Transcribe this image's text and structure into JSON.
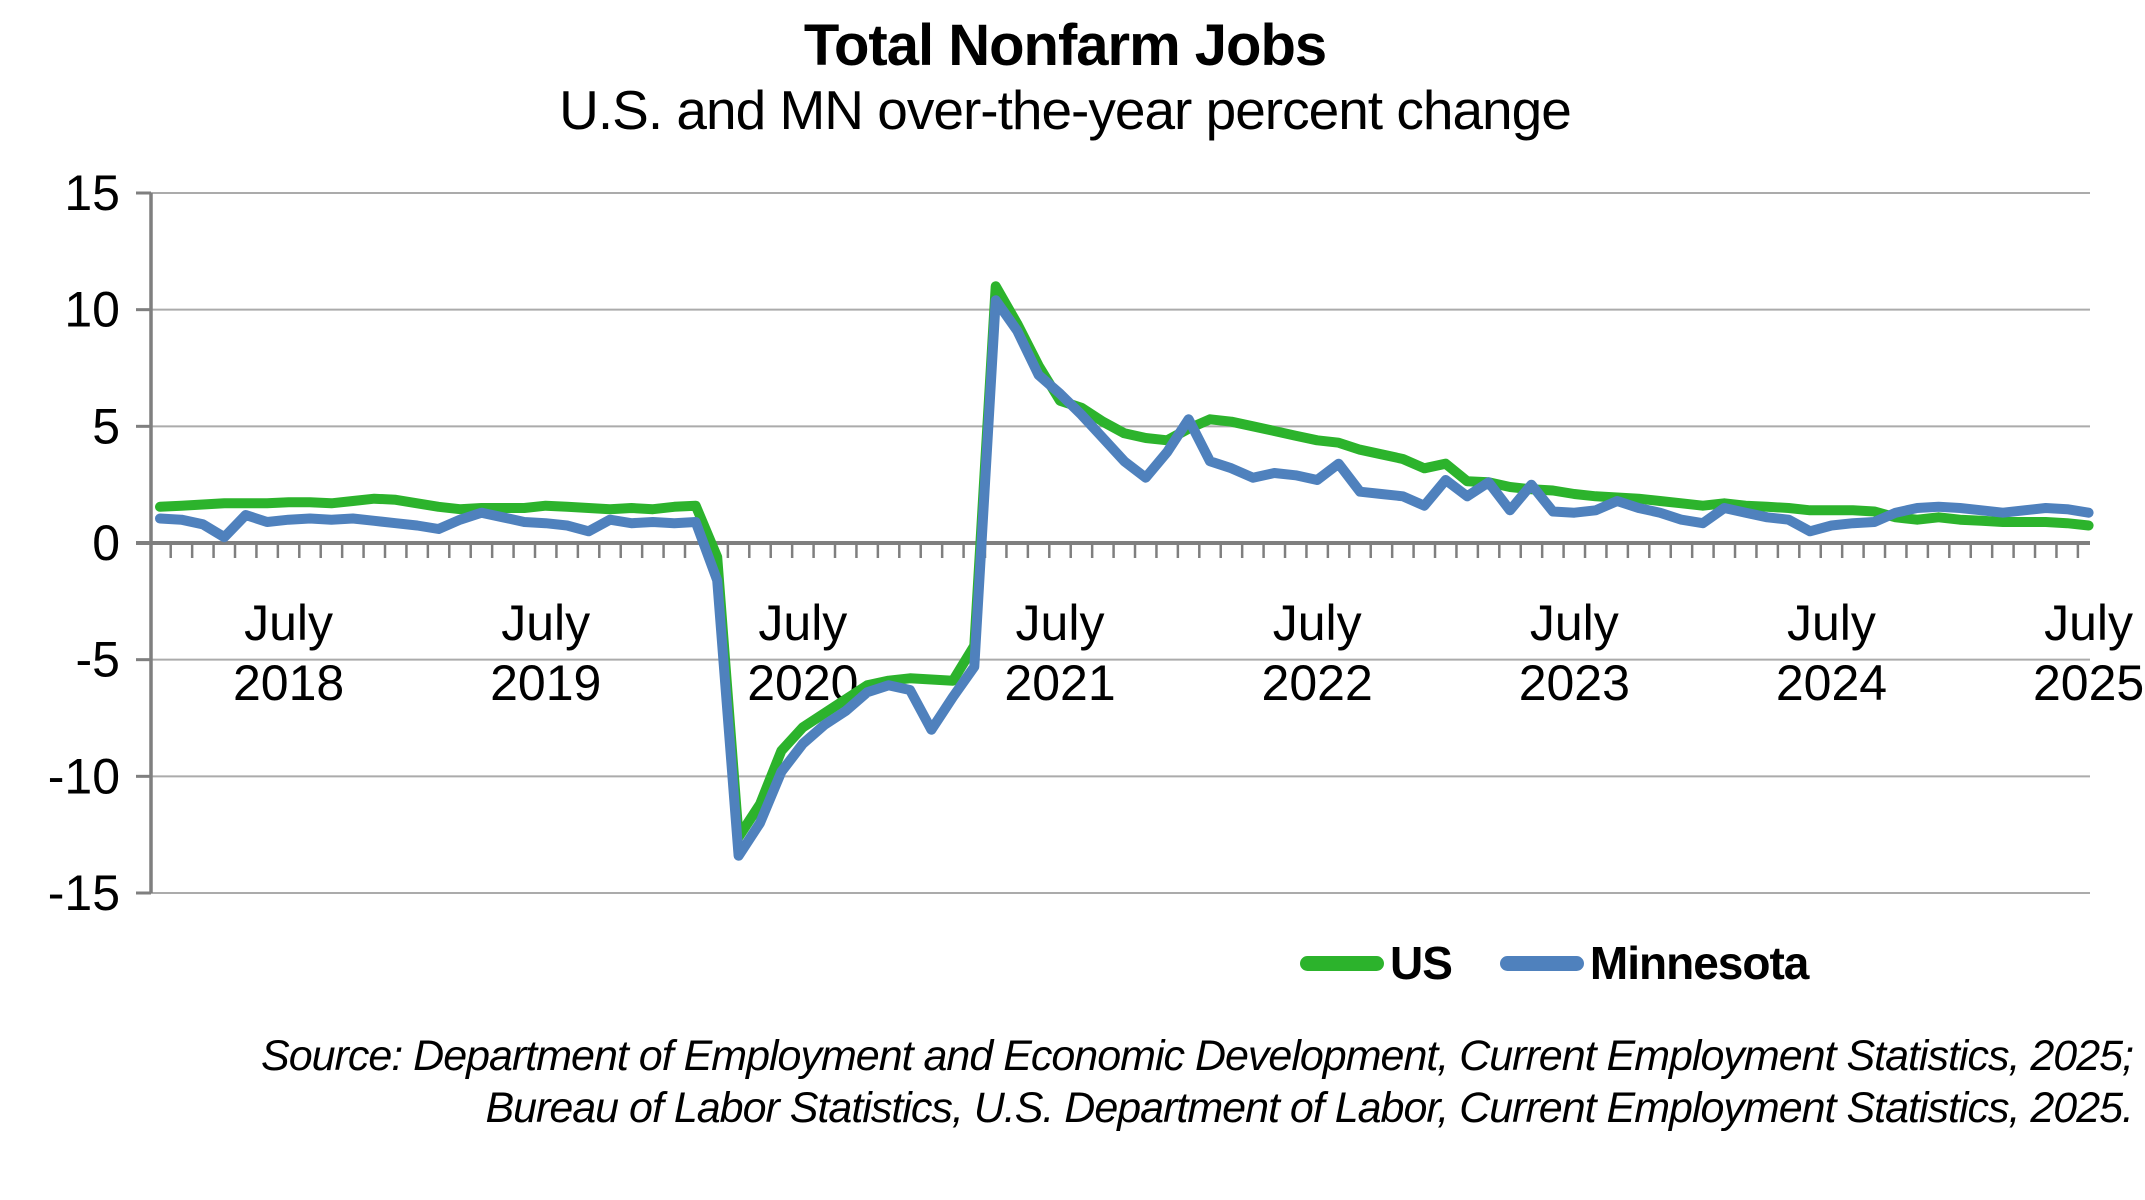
{
  "header": {
    "title": "Total Nonfarm Jobs",
    "subtitle": "U.S. and MN over-the-year percent change"
  },
  "chart_data": {
    "type": "line",
    "frequency": "monthly",
    "points_start": "2018-01",
    "points_end": "2025-07",
    "x_tick_labels": [
      {
        "month": "July",
        "year": "2018"
      },
      {
        "month": "July",
        "year": "2019"
      },
      {
        "month": "July",
        "year": "2020"
      },
      {
        "month": "July",
        "year": "2021"
      },
      {
        "month": "July",
        "year": "2022"
      },
      {
        "month": "July",
        "year": "2023"
      },
      {
        "month": "July",
        "year": "2024"
      },
      {
        "month": "July",
        "year": "2025"
      }
    ],
    "y_axis": {
      "ticks": [
        15,
        10,
        5,
        0,
        -5,
        -10,
        -15
      ],
      "min": -15,
      "max": 15
    },
    "grid": true,
    "legend_position": "bottom-right",
    "axis_color": "#7F7F7F",
    "grid_color": "#ABABAB",
    "series": [
      {
        "name": "US",
        "color": "#2CB32C",
        "values": [
          1.55,
          1.6,
          1.65,
          1.7,
          1.7,
          1.7,
          1.75,
          1.75,
          1.7,
          1.8,
          1.9,
          1.85,
          1.7,
          1.55,
          1.45,
          1.5,
          1.5,
          1.5,
          1.6,
          1.55,
          1.5,
          1.45,
          1.5,
          1.45,
          1.55,
          1.6,
          -0.6,
          -12.6,
          -11.2,
          -8.9,
          -7.9,
          -7.3,
          -6.7,
          -6.1,
          -5.9,
          -5.8,
          -5.85,
          -5.9,
          -4.4,
          11.0,
          9.4,
          7.6,
          6.1,
          5.8,
          5.2,
          4.7,
          4.5,
          4.4,
          4.9,
          5.3,
          5.2,
          5.0,
          4.8,
          4.6,
          4.4,
          4.3,
          4.0,
          3.8,
          3.6,
          3.2,
          3.4,
          2.65,
          2.6,
          2.4,
          2.3,
          2.25,
          2.1,
          2.0,
          1.95,
          1.9,
          1.8,
          1.7,
          1.6,
          1.7,
          1.6,
          1.55,
          1.5,
          1.4,
          1.4,
          1.4,
          1.35,
          1.1,
          1.0,
          1.1,
          1.0,
          0.95,
          0.9,
          0.9,
          0.9,
          0.85,
          0.75
        ]
      },
      {
        "name": "Minnesota",
        "color": "#4F81BD",
        "values": [
          1.05,
          1.0,
          0.8,
          0.25,
          1.2,
          0.9,
          1.0,
          1.05,
          1.0,
          1.05,
          0.95,
          0.85,
          0.75,
          0.6,
          1.0,
          1.3,
          1.1,
          0.9,
          0.85,
          0.75,
          0.5,
          1.0,
          0.85,
          0.9,
          0.85,
          0.9,
          -1.6,
          -13.4,
          -12.0,
          -9.8,
          -8.6,
          -7.8,
          -7.2,
          -6.4,
          -6.1,
          -6.3,
          -8.0,
          -6.6,
          -5.3,
          10.4,
          9.1,
          7.2,
          6.4,
          5.5,
          4.5,
          3.5,
          2.8,
          3.9,
          5.3,
          3.5,
          3.2,
          2.8,
          3.0,
          2.9,
          2.7,
          3.4,
          2.2,
          2.1,
          2.0,
          1.6,
          2.7,
          2.0,
          2.6,
          1.4,
          2.5,
          1.35,
          1.3,
          1.4,
          1.8,
          1.5,
          1.3,
          1.0,
          0.85,
          1.5,
          1.3,
          1.1,
          1.0,
          0.5,
          0.75,
          0.85,
          0.9,
          1.3,
          1.5,
          1.55,
          1.5,
          1.4,
          1.3,
          1.4,
          1.5,
          1.45,
          1.3
        ]
      }
    ]
  },
  "source": {
    "line1": "Source: Department of Employment and Economic Development, Current Employment Statistics, 2025;",
    "line2": "Bureau of Labor Statistics, U.S. Department of Labor, Current Employment Statistics, 2025."
  }
}
